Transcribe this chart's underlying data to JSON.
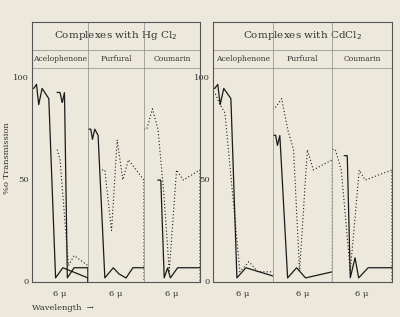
{
  "title_hg": "Complexes with Hg Cl",
  "title_cd": "Complexes with CdCl",
  "sub2": "2",
  "compounds": [
    "Acelophenone",
    "Furfural",
    "Coumarin"
  ],
  "ylabel": "%o Transmission",
  "xlabel": "Wavelength",
  "xtick_label": "6 μ",
  "yticks": [
    0,
    50,
    100
  ],
  "bg": "#ede8dc",
  "lc": "#1a1a1a",
  "ylim": [
    0,
    105
  ]
}
